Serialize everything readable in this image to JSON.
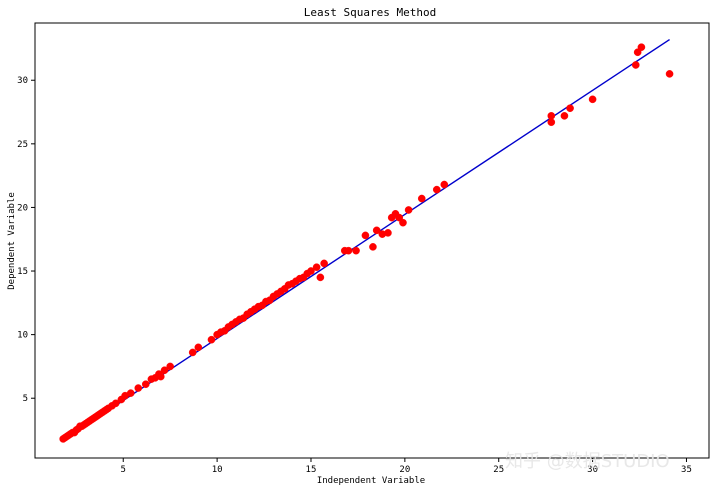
{
  "chart_data": {
    "type": "scatter",
    "title": "Least Squares Method",
    "xlabel": "Independent Variable",
    "ylabel": "Dependent Variable",
    "xlim": [
      0.3,
      36.2
    ],
    "ylim": [
      0.3,
      34.5
    ],
    "x_ticks": [
      5,
      10,
      15,
      20,
      25,
      30,
      35
    ],
    "y_ticks": [
      5,
      10,
      15,
      20,
      25,
      30
    ],
    "grid": true,
    "colors": {
      "points": "#ff0000",
      "fit_line": "#0000cc",
      "grid": "#b0b0b0"
    },
    "series": [
      {
        "type": "scatter",
        "x": [
          1.8,
          1.9,
          2.0,
          2.1,
          2.2,
          2.3,
          2.4,
          2.5,
          2.6,
          2.7,
          2.8,
          2.9,
          3.0,
          3.1,
          3.2,
          3.3,
          3.4,
          3.5,
          3.6,
          3.7,
          3.8,
          3.9,
          4.0,
          4.1,
          4.2,
          4.4,
          4.6,
          4.9,
          5.1,
          5.4,
          5.8,
          6.2,
          6.5,
          6.7,
          6.9,
          7.0,
          7.2,
          7.5,
          8.7,
          9.0,
          9.7,
          10.0,
          10.2,
          10.4,
          10.6,
          10.8,
          11.0,
          11.2,
          11.4,
          11.6,
          11.8,
          12.0,
          12.2,
          12.4,
          12.6,
          12.8,
          13.0,
          13.2,
          13.4,
          13.6,
          13.8,
          14.0,
          14.2,
          14.4,
          14.6,
          14.8,
          15.0,
          15.3,
          15.5,
          15.7,
          16.8,
          17.0,
          17.4,
          17.9,
          18.3,
          18.5,
          18.8,
          19.1,
          19.3,
          19.5,
          19.7,
          19.9,
          20.2,
          20.9,
          21.7,
          22.1,
          27.8,
          27.8,
          28.5,
          28.8,
          30.0,
          32.3,
          32.4,
          32.6,
          34.1
        ],
        "y": [
          1.8,
          1.9,
          2.0,
          2.1,
          2.2,
          2.3,
          2.3,
          2.5,
          2.6,
          2.8,
          2.8,
          2.9,
          3.0,
          3.1,
          3.2,
          3.3,
          3.4,
          3.5,
          3.6,
          3.7,
          3.8,
          3.9,
          4.0,
          4.1,
          4.2,
          4.4,
          4.6,
          4.9,
          5.2,
          5.4,
          5.8,
          6.1,
          6.5,
          6.6,
          6.9,
          6.7,
          7.2,
          7.5,
          8.6,
          9.0,
          9.6,
          10.0,
          10.2,
          10.3,
          10.6,
          10.8,
          11.0,
          11.2,
          11.3,
          11.6,
          11.8,
          12.0,
          12.2,
          12.3,
          12.6,
          12.7,
          13.0,
          13.2,
          13.4,
          13.6,
          13.9,
          14.0,
          14.2,
          14.4,
          14.5,
          14.8,
          15.0,
          15.3,
          14.5,
          15.6,
          16.6,
          16.6,
          16.6,
          17.8,
          16.9,
          18.2,
          17.9,
          18.0,
          19.2,
          19.5,
          19.2,
          18.8,
          19.8,
          20.7,
          21.4,
          21.8,
          27.2,
          26.7,
          27.2,
          27.8,
          28.5,
          31.2,
          32.2,
          32.6,
          30.5
        ]
      },
      {
        "type": "line",
        "x": [
          1.8,
          34.1
        ],
        "y": [
          1.7,
          33.2
        ]
      }
    ]
  },
  "watermark": {
    "text": "知乎 @数据STUDIO"
  }
}
